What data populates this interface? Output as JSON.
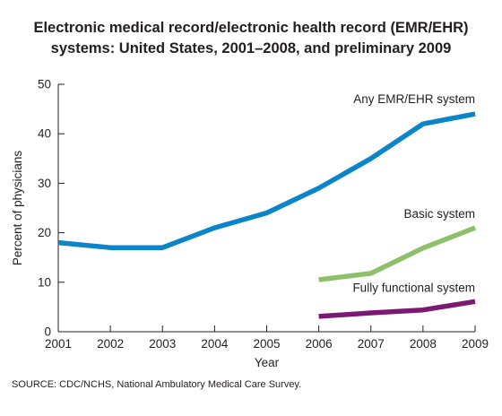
{
  "chart_data": {
    "type": "line",
    "title_lines": [
      "Electronic medical record/electronic health record (EMR/EHR)",
      "systems: United States, 2001–2008, and preliminary 2009"
    ],
    "xlabel": "Year",
    "ylabel": "Percent of physicians",
    "x": [
      2001,
      2002,
      2003,
      2004,
      2005,
      2006,
      2007,
      2008,
      2009
    ],
    "xlim": [
      2001,
      2009
    ],
    "ylim": [
      0,
      50
    ],
    "yticks": [
      0,
      10,
      20,
      30,
      40,
      50
    ],
    "grid": false,
    "legend": "inline labels next to lines",
    "series": [
      {
        "name": "Any EMR/EHR system",
        "color": "#0a85c9",
        "x": [
          2001,
          2002,
          2003,
          2004,
          2005,
          2006,
          2007,
          2008,
          2009
        ],
        "values": [
          18,
          17,
          17,
          21,
          24,
          29,
          35,
          42,
          44
        ]
      },
      {
        "name": "Basic system",
        "color": "#8dc06a",
        "x": [
          2006,
          2007,
          2008,
          2009
        ],
        "values": [
          10.5,
          11.8,
          16.9,
          21
        ]
      },
      {
        "name": "Fully functional system",
        "color": "#7c1a73",
        "x": [
          2006,
          2007,
          2008,
          2009
        ],
        "values": [
          3.1,
          3.8,
          4.4,
          6.1
        ]
      }
    ]
  },
  "source": "SOURCE: CDC/NCHS, National Ambulatory Medical Care Survey."
}
